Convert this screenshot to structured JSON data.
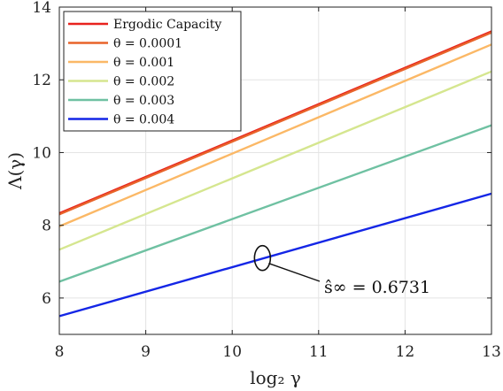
{
  "chart_data": {
    "type": "line",
    "xlabel": "log₂ γ",
    "ylabel": "Λ(γ)",
    "xlim": [
      8,
      13
    ],
    "ylim": [
      5,
      14
    ],
    "xticks": [
      "8",
      "9",
      "10",
      "11",
      "12",
      "13"
    ],
    "yticks": [
      "6",
      "8",
      "10",
      "12",
      "14"
    ],
    "grid": true,
    "legend_position": "top-left",
    "series": [
      {
        "name": "Ergodic Capacity",
        "color": "#e8231e",
        "x": [
          8,
          13
        ],
        "y": [
          8.33,
          13.33
        ]
      },
      {
        "name": "θ = 0.0001",
        "color": "#e8632a",
        "x": [
          8,
          13
        ],
        "y": [
          8.3,
          13.3
        ]
      },
      {
        "name": "θ = 0.001",
        "color": "#fbb866",
        "x": [
          8,
          13
        ],
        "y": [
          7.97,
          12.97
        ]
      },
      {
        "name": "θ = 0.002",
        "color": "#d5e68f",
        "x": [
          8,
          13
        ],
        "y": [
          7.33,
          12.23
        ]
      },
      {
        "name": "θ = 0.003",
        "color": "#6fc1a2",
        "x": [
          8,
          13
        ],
        "y": [
          6.45,
          10.75
        ]
      },
      {
        "name": "θ = 0.004",
        "color": "#1426e6",
        "x": [
          8,
          13
        ],
        "y": [
          5.5,
          8.87
        ]
      }
    ],
    "annotation": {
      "text": "ŝ∞ = 0.6731",
      "series_index": 5,
      "target_x": 10.35,
      "target_y": 7.1
    }
  }
}
